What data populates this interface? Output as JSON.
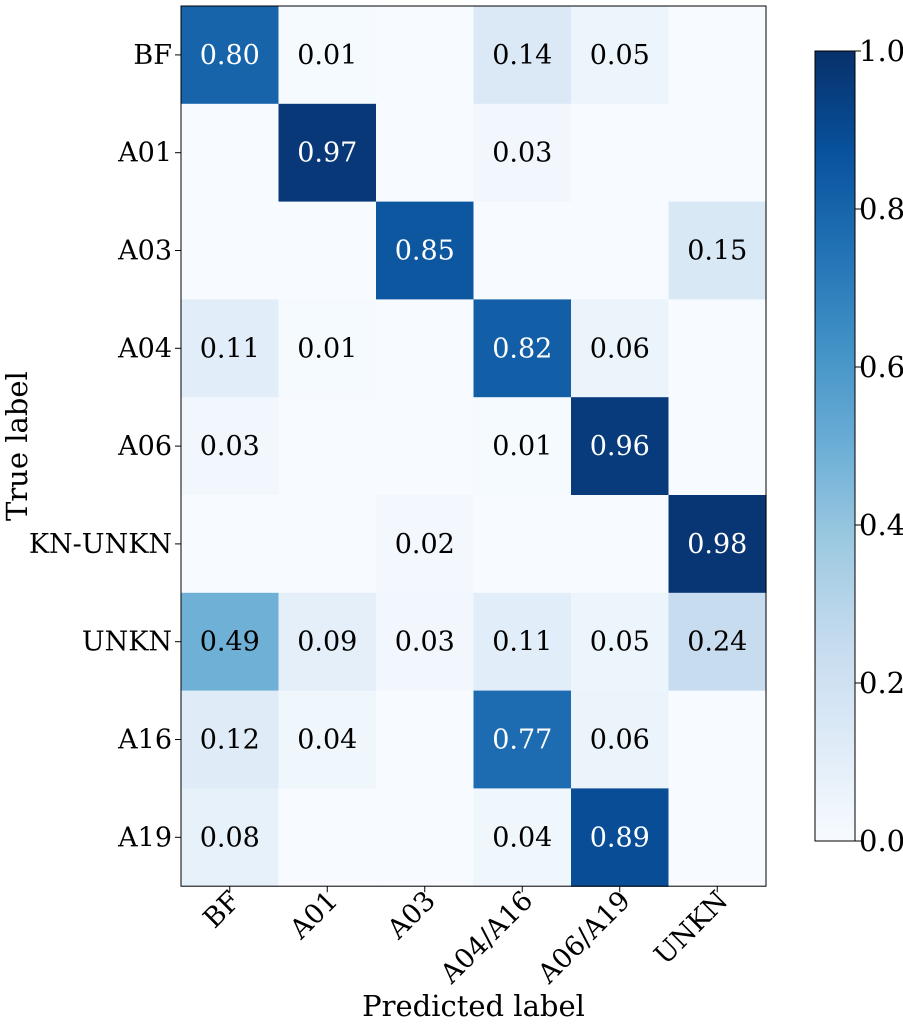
{
  "chart_data": {
    "type": "heatmap",
    "xlabel": "Predicted label",
    "ylabel": "True label",
    "x_categories": [
      "BF",
      "A01",
      "A03",
      "A04/A16",
      "A06/A19",
      "UNKN"
    ],
    "y_categories": [
      "BF",
      "A01",
      "A03",
      "A04",
      "A06",
      "KN-UNKN",
      "UNKN",
      "A16",
      "A19"
    ],
    "values": [
      [
        0.8,
        0.01,
        0.0,
        0.14,
        0.05,
        0.0
      ],
      [
        0.0,
        0.97,
        0.0,
        0.03,
        0.0,
        0.0
      ],
      [
        0.0,
        0.0,
        0.85,
        0.0,
        0.0,
        0.15
      ],
      [
        0.11,
        0.01,
        0.0,
        0.82,
        0.06,
        0.0
      ],
      [
        0.03,
        0.0,
        0.0,
        0.01,
        0.96,
        0.0
      ],
      [
        0.0,
        0.0,
        0.02,
        0.0,
        0.0,
        0.98
      ],
      [
        0.49,
        0.09,
        0.03,
        0.11,
        0.05,
        0.24
      ],
      [
        0.12,
        0.04,
        0.0,
        0.77,
        0.06,
        0.0
      ],
      [
        0.08,
        0.0,
        0.0,
        0.04,
        0.89,
        0.0
      ]
    ],
    "cell_labels": [
      [
        "0.80",
        "0.01",
        "",
        "0.14",
        "0.05",
        ""
      ],
      [
        "",
        "0.97",
        "",
        "0.03",
        "",
        ""
      ],
      [
        "",
        "",
        "0.85",
        "",
        "",
        "0.15"
      ],
      [
        "0.11",
        "0.01",
        "",
        "0.82",
        "0.06",
        ""
      ],
      [
        "0.03",
        "",
        "",
        "0.01",
        "0.96",
        ""
      ],
      [
        "",
        "",
        "0.02",
        "",
        "",
        "0.98"
      ],
      [
        "0.49",
        "0.09",
        "0.03",
        "0.11",
        "0.05",
        "0.24"
      ],
      [
        "0.12",
        "0.04",
        "",
        "0.77",
        "0.06",
        ""
      ],
      [
        "0.08",
        "",
        "",
        "0.04",
        "0.89",
        ""
      ]
    ],
    "colormap": "Blues",
    "colormap_stops": [
      "#f7fbff",
      "#deebf7",
      "#c6dbef",
      "#9ecae1",
      "#6baed6",
      "#4292c6",
      "#2171b5",
      "#08519c",
      "#08306b"
    ],
    "clim": [
      0.0,
      1.0
    ],
    "colorbar": {
      "ticks": [
        0.0,
        0.2,
        0.4,
        0.6,
        0.8,
        1.0
      ],
      "tick_labels": [
        "0.0",
        "0.2",
        "0.4",
        "0.6",
        "0.8",
        "1.0"
      ]
    },
    "grid": false,
    "legend": "colorbar-right"
  }
}
